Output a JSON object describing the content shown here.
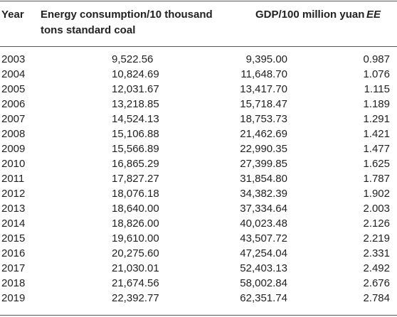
{
  "table": {
    "headers": {
      "year": "Year",
      "energy": "Energy consumption/10 thousand tons standard coal",
      "gdp": "GDP/100 million yuan",
      "ee": "EE"
    },
    "rows": [
      {
        "year": "2003",
        "energy": "9,522.56",
        "gdp": "9,395.00",
        "ee": "0.987"
      },
      {
        "year": "2004",
        "energy": "10,824.69",
        "gdp": "11,648.70",
        "ee": "1.076"
      },
      {
        "year": "2005",
        "energy": "12,031.67",
        "gdp": "13,417.70",
        "ee": "1.115"
      },
      {
        "year": "2006",
        "energy": "13,218.85",
        "gdp": "15,718.47",
        "ee": "1.189"
      },
      {
        "year": "2007",
        "energy": "14,524.13",
        "gdp": "18,753.73",
        "ee": "1.291"
      },
      {
        "year": "2008",
        "energy": "15,106.88",
        "gdp": "21,462.69",
        "ee": "1.421"
      },
      {
        "year": "2009",
        "energy": "15,566.89",
        "gdp": "22,990.35",
        "ee": "1.477"
      },
      {
        "year": "2010",
        "energy": "16,865.29",
        "gdp": "27,399.85",
        "ee": "1.625"
      },
      {
        "year": "2011",
        "energy": "17,827.27",
        "gdp": "31,854.80",
        "ee": "1.787"
      },
      {
        "year": "2012",
        "energy": "18,076.18",
        "gdp": "34,382.39",
        "ee": "1.902"
      },
      {
        "year": "2013",
        "energy": "18,640.00",
        "gdp": "37,334.64",
        "ee": "2.003"
      },
      {
        "year": "2014",
        "energy": "18,826.00",
        "gdp": "40,023.48",
        "ee": "2.126"
      },
      {
        "year": "2015",
        "energy": "19,610.00",
        "gdp": "43,507.72",
        "ee": "2.219"
      },
      {
        "year": "2016",
        "energy": "20,275.60",
        "gdp": "47,254.04",
        "ee": "2.331"
      },
      {
        "year": "2017",
        "energy": "21,030.01",
        "gdp": "52,403.13",
        "ee": "2.492"
      },
      {
        "year": "2018",
        "energy": "21,674.56",
        "gdp": "58,002.84",
        "ee": "2.676"
      },
      {
        "year": "2019",
        "energy": "22,392.77",
        "gdp": "62,351.74",
        "ee": "2.784"
      }
    ]
  }
}
